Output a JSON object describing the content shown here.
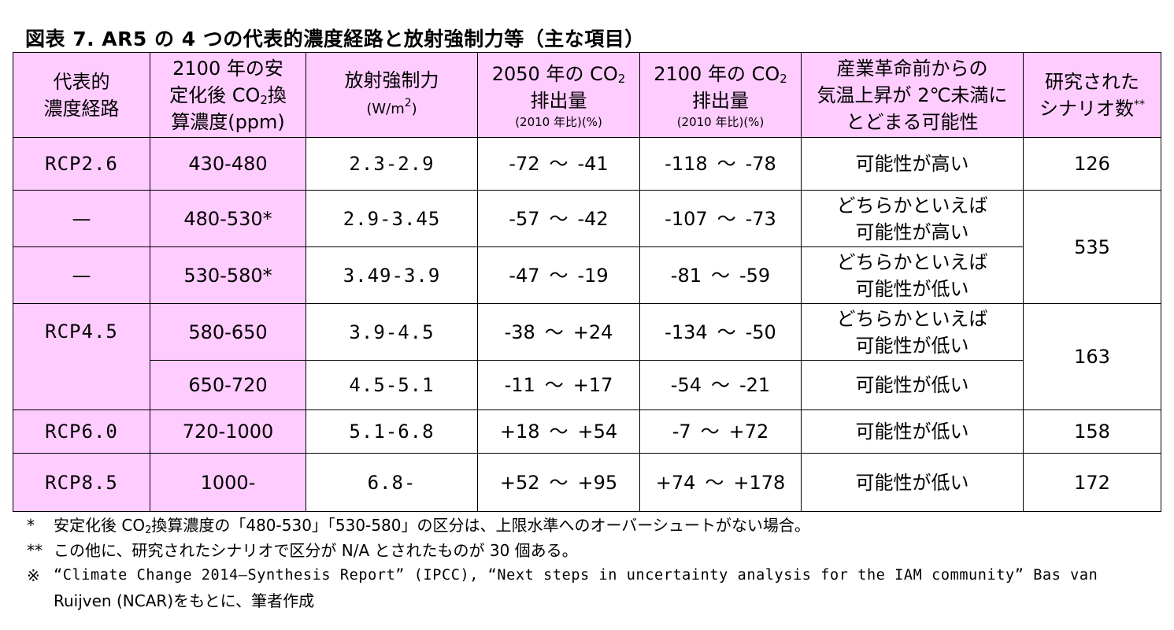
{
  "title": "図表 7. AR5 の 4 つの代表的濃度経路と放射強制力等（主な項目）",
  "headers": {
    "pathway": [
      "代表的",
      "濃度経路"
    ],
    "stabilization": {
      "line1": "2100 年の安",
      "line2a": "定化後 CO",
      "line2sub": "2",
      "line2b": "換",
      "line3": "算濃度(ppm)"
    },
    "forcing": {
      "line1": "放射強制力",
      "unit_a": "(W/m",
      "unit_sup": "2",
      "unit_b": ")"
    },
    "emis2050": {
      "line1a": "2050 年の CO",
      "line1sub": "2",
      "line2": "排出量",
      "line3": "(2010 年比)(%)"
    },
    "emis2100": {
      "line1a": "2100 年の CO",
      "line1sub": "2",
      "line2": "排出量",
      "line3": "(2010 年比)(%)"
    },
    "probability": [
      "産業革命前からの",
      "気温上昇が 2℃未満に",
      "とどまる可能性"
    ],
    "scenarios": {
      "line1": "研究された",
      "line2": "シナリオ数",
      "sup": "**"
    }
  },
  "rows": [
    {
      "pathway": "RCP2.6",
      "conc": "430-480",
      "forcing": "2.3-2.9",
      "e2050_lo": "-72",
      "e2050_hi": "-41",
      "e2100_lo": "-118",
      "e2100_hi": "-78",
      "prob": [
        "可能性が高い"
      ],
      "scen": "126"
    },
    {
      "pathway": "—",
      "conc": "480-530*",
      "forcing": "2.9-3.45",
      "e2050_lo": "-57",
      "e2050_hi": "-42",
      "e2100_lo": "-107",
      "e2100_hi": "-73",
      "prob": [
        "どちらかといえば",
        "可能性が高い"
      ],
      "scen": "535"
    },
    {
      "pathway": "—",
      "conc": "530-580*",
      "forcing": "3.49-3.9",
      "e2050_lo": "-47",
      "e2050_hi": "-19",
      "e2100_lo": "-81",
      "e2100_hi": "-59",
      "prob": [
        "どちらかといえば",
        "可能性が低い"
      ]
    },
    {
      "pathway": "RCP4.5",
      "conc": "580-650",
      "forcing": "3.9-4.5",
      "e2050_lo": "-38",
      "e2050_hi": "+24",
      "e2100_lo": "-134",
      "e2100_hi": "-50",
      "prob": [
        "どちらかといえば",
        "可能性が低い"
      ],
      "scen": "163"
    },
    {
      "conc": "650-720",
      "forcing": "4.5-5.1",
      "e2050_lo": "-11",
      "e2050_hi": "+17",
      "e2100_lo": "-54",
      "e2100_hi": "-21",
      "prob": [
        "可能性が低い"
      ]
    },
    {
      "pathway": "RCP6.0",
      "conc": "720-1000",
      "forcing": "5.1-6.8",
      "e2050_lo": "+18",
      "e2050_hi": "+54",
      "e2100_lo": "-7",
      "e2100_hi": "+72",
      "prob": [
        "可能性が低い"
      ],
      "scen": "158"
    },
    {
      "pathway": "RCP8.5",
      "conc": "1000-",
      "forcing": "6.8-",
      "e2050_lo": "+52",
      "e2050_hi": "+95",
      "e2100_lo": "+74",
      "e2100_hi": "+178",
      "prob": [
        "可能性が低い"
      ],
      "scen": "172"
    }
  ],
  "tilde": "～",
  "notes": {
    "n1_mark": "*",
    "n1_a": "安定化後 CO",
    "n1_sub": "2",
    "n1_b": "換算濃度の「480-530」「530-580」の区分は、上限水準へのオーバーシュートがない場合。",
    "n2_mark": "**",
    "n2": "この他に、研究されたシナリオで区分が N/A とされたものが 30 個ある。",
    "n3_mark": "※",
    "n3_line1": "“Climate Change 2014—Synthesis Report” (IPCC), “Next steps in uncertainty analysis for the IAM community” Bas van",
    "n3_line2": "Ruijven (NCAR)をもとに、筆者作成"
  },
  "colors": {
    "header_fill": "#ffccff",
    "pathway_fill": "#ffccff"
  }
}
